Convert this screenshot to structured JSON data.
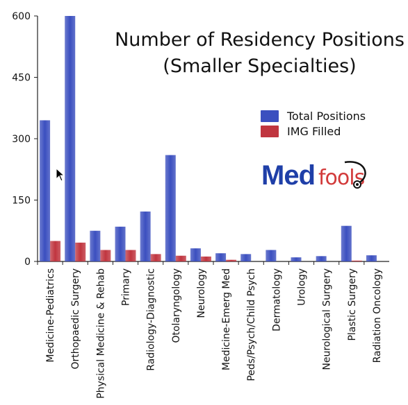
{
  "chart_data": {
    "type": "bar",
    "title": "Number of Residency Positions",
    "subtitle": "(Smaller Specialties)",
    "xlabel": "",
    "ylabel": "",
    "ylim": [
      0,
      600
    ],
    "yticks": [
      0,
      150,
      300,
      450,
      600
    ],
    "grid": false,
    "legend": "right",
    "categories": [
      "Medicine-Pediatrics",
      "Orthopaedic Surgery",
      "Physical Medicine & Rehab",
      "Primary",
      "Radiology-Diagnostic",
      "Otolaryngology",
      "Neurology",
      "Medicine-Emerg Med",
      "Peds/Psych/Child Psych",
      "Dermatology",
      "Urology",
      "Neurological Surgery",
      "Plastic Surgery",
      "Radiation Oncology"
    ],
    "series": [
      {
        "name": "Total Positions",
        "color": "#3b4fbf",
        "values": [
          345,
          600,
          75,
          85,
          122,
          260,
          32,
          20,
          18,
          28,
          10,
          13,
          87,
          15
        ]
      },
      {
        "name": "IMG Filled",
        "color": "#c0353f",
        "values": [
          50,
          46,
          28,
          28,
          18,
          14,
          12,
          4,
          0,
          0,
          0,
          0,
          2,
          0
        ]
      }
    ]
  },
  "logo": {
    "text_med": "Med",
    "text_fools": "fools",
    "med_color": "#1f3fa8",
    "fools_color": "#d23a3a"
  },
  "cursor": {
    "icon": "mouse-pointer-icon"
  }
}
